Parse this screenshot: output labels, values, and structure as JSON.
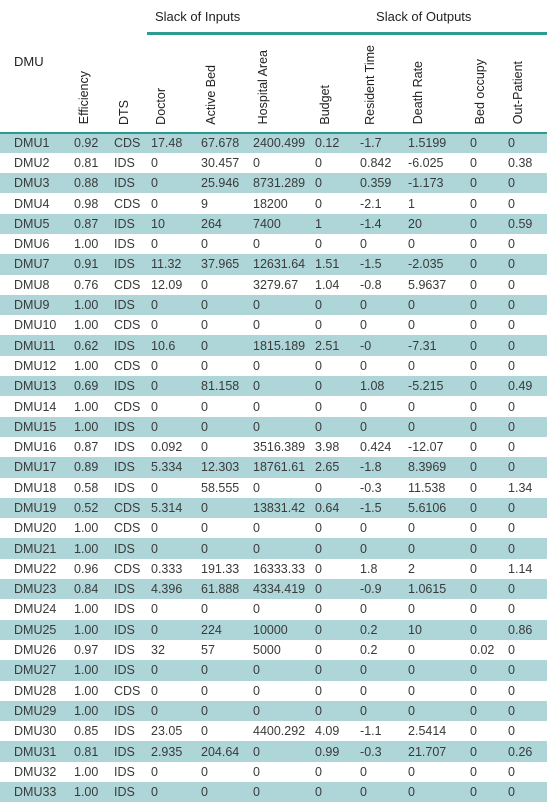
{
  "group_headers": {
    "inputs": "Slack of Inputs",
    "outputs": "Slack of Outputs"
  },
  "columns": {
    "dmu": "DMU",
    "efficiency": "Efficiency",
    "dts": "DTS",
    "doctor": "Doctor",
    "active_bed": "Active Bed",
    "hospital_area": "Hospital Area",
    "budget": "Budget",
    "resident_time": "Resident Time",
    "death_rate": "Death Rate",
    "bed_occupy": "Bed occupy",
    "out_patient": "Out-Patient"
  },
  "rows": [
    [
      "DMU1",
      "0.92",
      "CDS",
      "17.48",
      "67.678",
      "2400.499",
      "0.12",
      "-1.7",
      "1.5199",
      "0",
      "0"
    ],
    [
      "DMU2",
      "0.81",
      "IDS",
      "0",
      "30.457",
      "0",
      "0",
      "0.842",
      "-6.025",
      "0",
      "0.38"
    ],
    [
      "DMU3",
      "0.88",
      "IDS",
      "0",
      "25.946",
      "8731.289",
      "0",
      "0.359",
      "-1.173",
      "0",
      "0"
    ],
    [
      "DMU4",
      "0.98",
      "CDS",
      "0",
      "9",
      "18200",
      "0",
      "-2.1",
      "1",
      "0",
      "0"
    ],
    [
      "DMU5",
      "0.87",
      "IDS",
      "10",
      "264",
      "7400",
      "1",
      "-1.4",
      "20",
      "0",
      "0.59"
    ],
    [
      "DMU6",
      "1.00",
      "IDS",
      "0",
      "0",
      "0",
      "0",
      "0",
      "0",
      "0",
      "0"
    ],
    [
      "DMU7",
      "0.91",
      "IDS",
      "11.32",
      "37.965",
      "12631.64",
      "1.51",
      "-1.5",
      "-2.035",
      "0",
      "0"
    ],
    [
      "DMU8",
      "0.76",
      "CDS",
      "12.09",
      "0",
      "3279.67",
      "1.04",
      "-0.8",
      "5.9637",
      "0",
      "0"
    ],
    [
      "DMU9",
      "1.00",
      "IDS",
      "0",
      "0",
      "0",
      "0",
      "0",
      "0",
      "0",
      "0"
    ],
    [
      "DMU10",
      "1.00",
      "CDS",
      "0",
      "0",
      "0",
      "0",
      "0",
      "0",
      "0",
      "0"
    ],
    [
      "DMU11",
      "0.62",
      "IDS",
      "10.6",
      "0",
      "1815.189",
      "2.51",
      "-0",
      "-7.31",
      "0",
      "0"
    ],
    [
      "DMU12",
      "1.00",
      "CDS",
      "0",
      "0",
      "0",
      "0",
      "0",
      "0",
      "0",
      "0"
    ],
    [
      "DMU13",
      "0.69",
      "IDS",
      "0",
      "81.158",
      "0",
      "0",
      "1.08",
      "-5.215",
      "0",
      "0.49"
    ],
    [
      "DMU14",
      "1.00",
      "CDS",
      "0",
      "0",
      "0",
      "0",
      "0",
      "0",
      "0",
      "0"
    ],
    [
      "DMU15",
      "1.00",
      "IDS",
      "0",
      "0",
      "0",
      "0",
      "0",
      "0",
      "0",
      "0"
    ],
    [
      "DMU16",
      "0.87",
      "IDS",
      "0.092",
      "0",
      "3516.389",
      "3.98",
      "0.424",
      "-12.07",
      "0",
      "0"
    ],
    [
      "DMU17",
      "0.89",
      "IDS",
      "5.334",
      "12.303",
      "18761.61",
      "2.65",
      "-1.8",
      "8.3969",
      "0",
      "0"
    ],
    [
      "DMU18",
      "0.58",
      "IDS",
      "0",
      "58.555",
      "0",
      "0",
      "-0.3",
      "11.538",
      "0",
      "1.34"
    ],
    [
      "DMU19",
      "0.52",
      "CDS",
      "5.314",
      "0",
      "13831.42",
      "0.64",
      "-1.5",
      "5.6106",
      "0",
      "0"
    ],
    [
      "DMU20",
      "1.00",
      "CDS",
      "0",
      "0",
      "0",
      "0",
      "0",
      "0",
      "0",
      "0"
    ],
    [
      "DMU21",
      "1.00",
      "IDS",
      "0",
      "0",
      "0",
      "0",
      "0",
      "0",
      "0",
      "0"
    ],
    [
      "DMU22",
      "0.96",
      "CDS",
      "0.333",
      "191.33",
      "16333.33",
      "0",
      "1.8",
      "2",
      "0",
      "1.14"
    ],
    [
      "DMU23",
      "0.84",
      "IDS",
      "4.396",
      "61.888",
      "4334.419",
      "0",
      "-0.9",
      "1.0615",
      "0",
      "0"
    ],
    [
      "DMU24",
      "1.00",
      "IDS",
      "0",
      "0",
      "0",
      "0",
      "0",
      "0",
      "0",
      "0"
    ],
    [
      "DMU25",
      "1.00",
      "IDS",
      "0",
      "224",
      "10000",
      "0",
      "0.2",
      "10",
      "0",
      "0.86"
    ],
    [
      "DMU26",
      "0.97",
      "IDS",
      "32",
      "57",
      "5000",
      "0",
      "0.2",
      "0",
      "0.02",
      "0"
    ],
    [
      "DMU27",
      "1.00",
      "IDS",
      "0",
      "0",
      "0",
      "0",
      "0",
      "0",
      "0",
      "0"
    ],
    [
      "DMU28",
      "1.00",
      "CDS",
      "0",
      "0",
      "0",
      "0",
      "0",
      "0",
      "0",
      "0"
    ],
    [
      "DMU29",
      "1.00",
      "IDS",
      "0",
      "0",
      "0",
      "0",
      "0",
      "0",
      "0",
      "0"
    ],
    [
      "DMU30",
      "0.85",
      "IDS",
      "23.05",
      "0",
      "4400.292",
      "4.09",
      "-1.1",
      "2.5414",
      "0",
      "0"
    ],
    [
      "DMU31",
      "0.81",
      "IDS",
      "2.935",
      "204.64",
      "0",
      "0.99",
      "-0.3",
      "21.707",
      "0",
      "0.26"
    ],
    [
      "DMU32",
      "1.00",
      "IDS",
      "0",
      "0",
      "0",
      "0",
      "0",
      "0",
      "0",
      "0"
    ],
    [
      "DMU33",
      "1.00",
      "IDS",
      "0",
      "0",
      "0",
      "0",
      "0",
      "0",
      "0",
      "0"
    ]
  ]
}
